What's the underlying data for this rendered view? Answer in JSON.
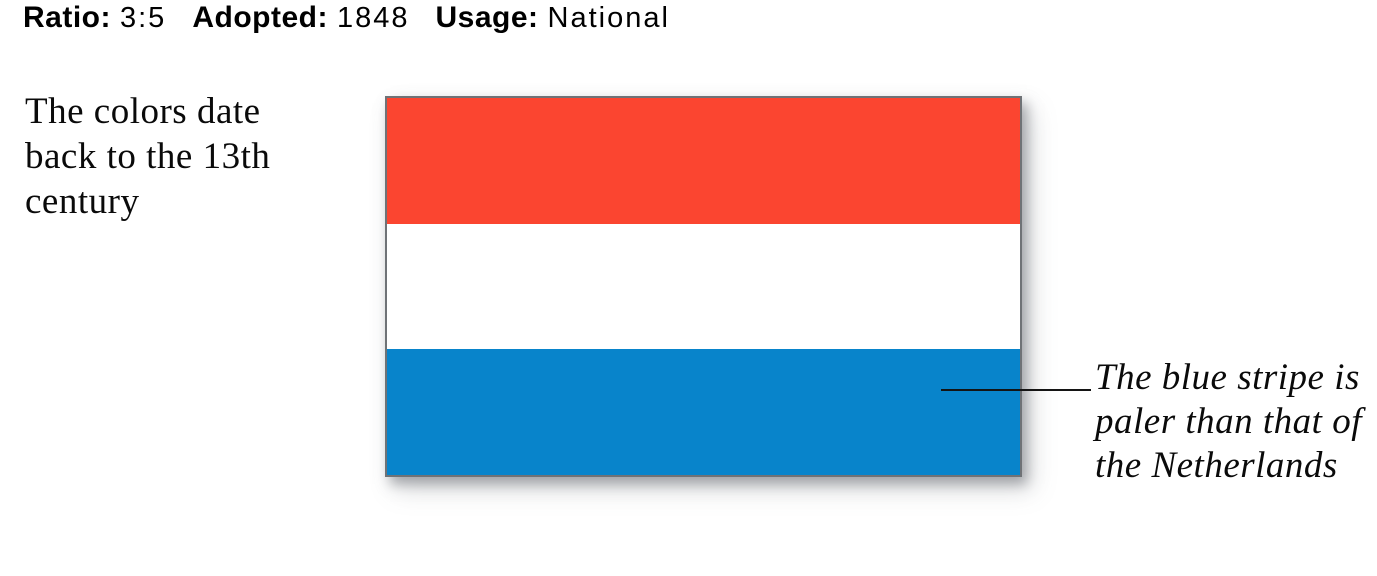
{
  "meta": {
    "ratio_label": "Ratio:",
    "ratio_value": "3:5",
    "adopted_label": "Adopted:",
    "adopted_value": "1848",
    "usage_label": "Usage:",
    "usage_value": "National"
  },
  "flag": {
    "border_color": "#6f7276",
    "stripes": [
      {
        "position": "top",
        "color": "#fb4530"
      },
      {
        "position": "middle",
        "color": "#ffffff"
      },
      {
        "position": "bottom",
        "color": "#0884cb"
      }
    ]
  },
  "left_note": {
    "lines": [
      "The colors date",
      "back to the 13th",
      "century"
    ]
  },
  "right_note": {
    "lines": [
      "The blue stripe is",
      "paler than that of",
      "the Netherlands"
    ]
  },
  "leader_line_color": "#141414"
}
